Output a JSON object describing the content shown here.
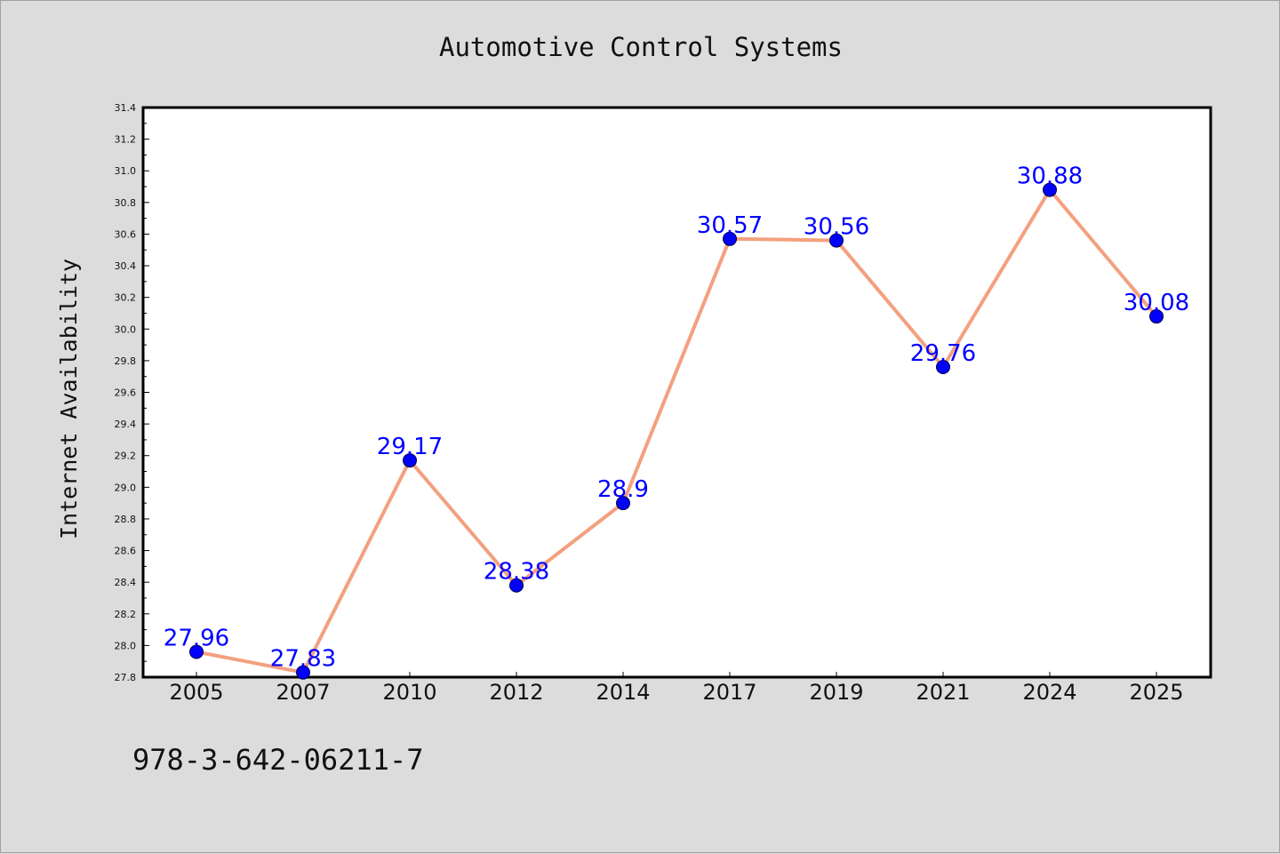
{
  "chart_data": {
    "type": "line",
    "title": "Automotive Control Systems",
    "xlabel": "",
    "ylabel": "Internet Availability",
    "categories": [
      "2005",
      "2007",
      "2010",
      "2012",
      "2014",
      "2017",
      "2019",
      "2021",
      "2024",
      "2025"
    ],
    "series": [
      {
        "values": [
          27.96,
          27.83,
          29.17,
          28.38,
          28.9,
          30.57,
          30.56,
          29.76,
          30.88,
          30.08
        ],
        "data_labels": [
          "27.96",
          "27.83",
          "29.17",
          "28.38",
          "28.9",
          "30.57",
          "30.56",
          "29.76",
          "30.88",
          "30.08"
        ]
      }
    ],
    "ylim": [
      27.8,
      31.4
    ],
    "y_ticks": [
      "27.8",
      "28.0",
      "28.2",
      "28.4",
      "28.6",
      "28.8",
      "29.0",
      "29.2",
      "29.4",
      "29.6",
      "29.8",
      "30.0",
      "30.2",
      "30.4",
      "30.6",
      "30.8",
      "31.0",
      "31.2",
      "31.4"
    ],
    "grid": false,
    "legend": "none",
    "colors": {
      "line": "#f4a07e",
      "marker": "#0000ff",
      "data_label": "#0000ff",
      "plot_background": "#ffffff",
      "page_background": "#dcdcdc"
    }
  },
  "footer": {
    "isbn": "978-3-642-06211-7"
  }
}
